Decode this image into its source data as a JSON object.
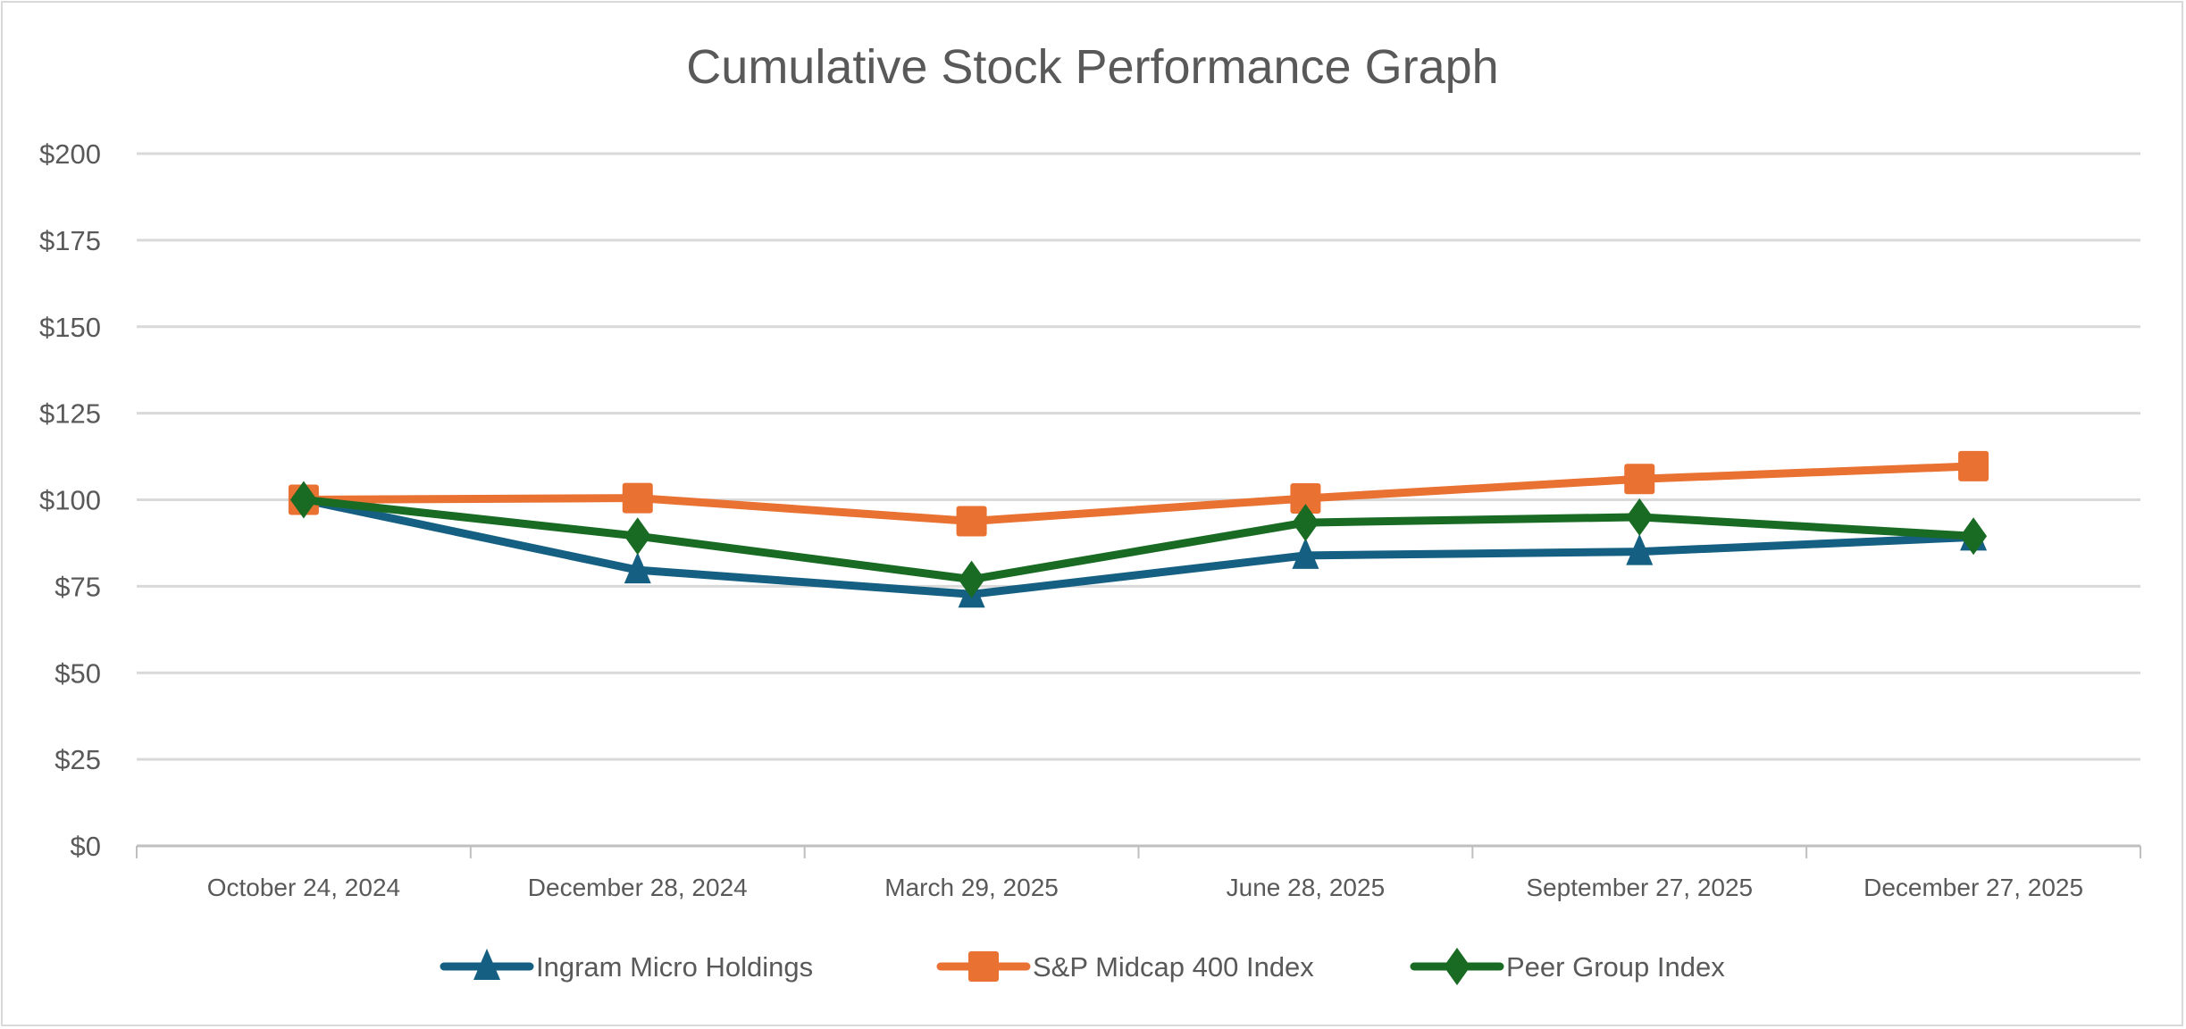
{
  "chart_data": {
    "type": "line",
    "title": "Cumulative Stock Performance Graph",
    "xlabel": "",
    "ylabel": "",
    "categories": [
      "October 24, 2024",
      "December 28, 2024",
      "March 29, 2025",
      "June 28, 2025",
      "September 27, 2025",
      "December 27, 2025"
    ],
    "ylim": [
      0,
      200
    ],
    "yticks": [
      0,
      25,
      50,
      75,
      100,
      125,
      150,
      175,
      200
    ],
    "ytick_labels": [
      "$0",
      "$25",
      "$50",
      "$75",
      "$100",
      "$125",
      "$150",
      "$175",
      "$200"
    ],
    "grid": true,
    "legend_position": "bottom",
    "series": [
      {
        "name": "Ingram Micro Holdings",
        "color": "#156082",
        "marker": "triangle",
        "values": [
          100,
          79.7,
          72.7,
          83.9,
          85.0,
          89.2
        ]
      },
      {
        "name": "S&P Midcap 400 Index",
        "color": "#E97132",
        "marker": "square",
        "values": [
          100,
          100.5,
          93.8,
          100.4,
          106.0,
          109.7
        ]
      },
      {
        "name": "Peer Group Index",
        "color": "#196B24",
        "marker": "diamond",
        "values": [
          100,
          89.5,
          77.0,
          93.4,
          95.0,
          89.5
        ]
      }
    ]
  }
}
